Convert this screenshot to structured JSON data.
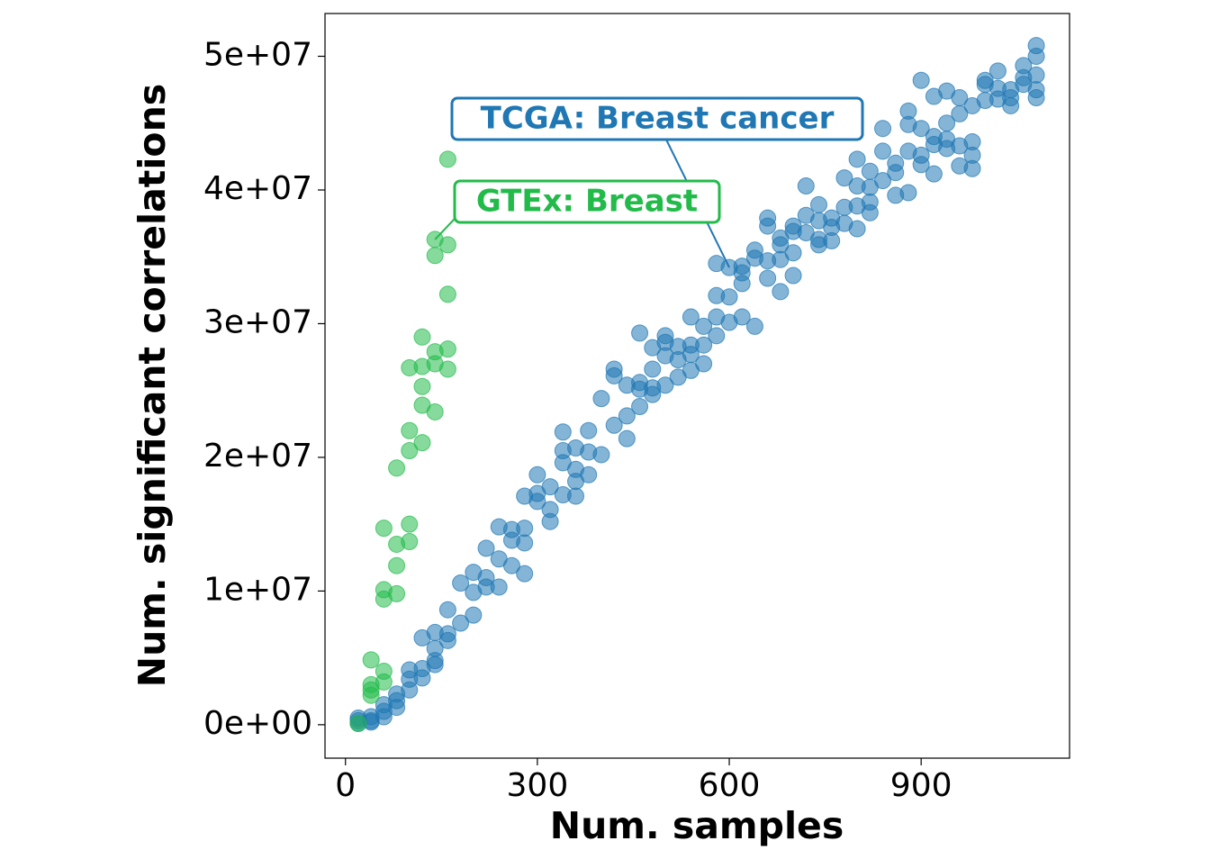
{
  "chart_data": {
    "type": "scatter",
    "xlabel": "Num. samples",
    "ylabel": "Num. significant correlations",
    "xlim": [
      -32,
      1132
    ],
    "ylim": [
      -2500000,
      53200000
    ],
    "xticks": [
      0,
      300,
      600,
      900
    ],
    "yticks": [
      {
        "value": 0,
        "label": "0e+00"
      },
      {
        "value": 10000000,
        "label": "1e+07"
      },
      {
        "value": 20000000,
        "label": "2e+07"
      },
      {
        "value": 30000000,
        "label": "3e+07"
      },
      {
        "value": 40000000,
        "label": "4e+07"
      },
      {
        "value": 50000000,
        "label": "5e+07"
      }
    ],
    "series": [
      {
        "color": "#1f77b4",
        "x": [
          20,
          20,
          20,
          40,
          40,
          40,
          60,
          60,
          60,
          80,
          80,
          80,
          100,
          100,
          100,
          120,
          120,
          120,
          140,
          140,
          140,
          140,
          160,
          160,
          160,
          180,
          180,
          200,
          200,
          200,
          220,
          220,
          220,
          240,
          240,
          240,
          260,
          260,
          260,
          280,
          280,
          280,
          280,
          300,
          300,
          300,
          320,
          320,
          320,
          340,
          340,
          340,
          340,
          360,
          360,
          360,
          360,
          380,
          380,
          380,
          400,
          400,
          420,
          420,
          420,
          440,
          440,
          440,
          460,
          460,
          460,
          460,
          480,
          480,
          480,
          480,
          500,
          500,
          500,
          500,
          520,
          520,
          520,
          540,
          540,
          540,
          540,
          560,
          560,
          560,
          580,
          580,
          580,
          580,
          600,
          600,
          600,
          620,
          620,
          620,
          620,
          640,
          640,
          640,
          660,
          660,
          660,
          660,
          680,
          680,
          680,
          680,
          700,
          700,
          700,
          700,
          720,
          720,
          720,
          740,
          740,
          740,
          740,
          760,
          760,
          760,
          780,
          780,
          780,
          800,
          800,
          800,
          800,
          820,
          820,
          820,
          820,
          840,
          840,
          840,
          860,
          860,
          860,
          880,
          880,
          880,
          880,
          900,
          900,
          900,
          900,
          920,
          920,
          920,
          920,
          940,
          940,
          940,
          940,
          960,
          960,
          960,
          960,
          980,
          980,
          980,
          980,
          1000,
          1000,
          1000,
          1020,
          1020,
          1020,
          1040,
          1040,
          1040,
          1060,
          1060,
          1060,
          1080,
          1080,
          1080,
          1080,
          1080
        ],
        "values": [
          100000,
          300000,
          500000,
          300000,
          600000,
          200000,
          600000,
          1000000,
          1500000,
          1300000,
          1800000,
          2300000,
          2600000,
          3400000,
          4100000,
          3500000,
          4200000,
          6500000,
          4500000,
          4800000,
          5700000,
          6900000,
          6300000,
          6800000,
          8600000,
          7600000,
          10600000,
          8200000,
          9900000,
          11400000,
          10300000,
          11000000,
          13200000,
          10300000,
          12400000,
          14800000,
          11900000,
          13800000,
          14600000,
          11300000,
          13600000,
          14700000,
          17100000,
          16700000,
          17300000,
          18700000,
          15200000,
          16100000,
          17800000,
          17200000,
          19600000,
          20500000,
          21900000,
          17100000,
          18200000,
          19100000,
          20700000,
          18700000,
          20400000,
          22000000,
          20200000,
          24400000,
          22400000,
          26100000,
          26600000,
          21400000,
          23100000,
          25400000,
          23800000,
          25100000,
          25600000,
          29300000,
          24700000,
          25200000,
          26600000,
          28200000,
          25400000,
          27600000,
          28600000,
          29100000,
          26000000,
          27300000,
          28300000,
          26500000,
          27700000,
          28400000,
          30500000,
          27000000,
          28400000,
          29800000,
          29100000,
          30500000,
          32100000,
          34500000,
          30100000,
          32000000,
          34200000,
          30500000,
          33000000,
          33800000,
          34300000,
          29800000,
          34900000,
          35500000,
          33400000,
          34700000,
          37300000,
          37900000,
          32400000,
          34800000,
          35900000,
          36400000,
          33600000,
          35300000,
          36900000,
          37300000,
          36800000,
          38100000,
          40300000,
          35900000,
          36300000,
          37700000,
          38900000,
          36200000,
          37200000,
          37900000,
          37500000,
          38700000,
          40900000,
          37100000,
          38800000,
          40300000,
          42300000,
          38300000,
          39100000,
          40200000,
          41400000,
          40700000,
          42900000,
          44600000,
          39600000,
          41300000,
          42000000,
          39800000,
          42900000,
          44900000,
          45900000,
          41900000,
          42600000,
          44600000,
          48200000,
          41200000,
          43400000,
          44000000,
          47000000,
          43100000,
          43800000,
          45000000,
          47400000,
          41800000,
          43300000,
          45700000,
          46900000,
          41600000,
          42600000,
          43600000,
          46300000,
          46700000,
          47900000,
          48200000,
          46800000,
          47600000,
          48900000,
          46300000,
          46900000,
          47500000,
          47900000,
          48400000,
          49300000,
          46900000,
          47500000,
          48600000,
          50000000,
          50800000
        ]
      },
      {
        "color": "#22bb4a",
        "x": [
          20,
          40,
          40,
          40,
          40,
          60,
          60,
          60,
          60,
          60,
          80,
          80,
          80,
          80,
          100,
          100,
          100,
          100,
          100,
          120,
          120,
          120,
          120,
          120,
          140,
          140,
          140,
          140,
          140,
          160,
          160,
          160,
          160,
          160
        ],
        "values": [
          100000,
          4850000,
          3000000,
          2200000,
          2600000,
          4000000,
          3200000,
          14700000,
          9400000,
          10100000,
          19200000,
          13500000,
          11900000,
          9800000,
          15000000,
          13700000,
          22000000,
          26700000,
          20500000,
          21100000,
          26800000,
          29000000,
          25300000,
          23900000,
          36300000,
          35100000,
          27900000,
          27000000,
          23400000,
          42300000,
          35900000,
          32200000,
          28100000,
          26600000
        ]
      }
    ],
    "annotations": [
      {
        "text": "TCGA: Breast cancer",
        "x": 600,
        "y": 34200000,
        "color": "#1f77b4"
      },
      {
        "text": "GTEx: Breast",
        "x": 140,
        "y": 36300000,
        "color": "#22bb4a"
      }
    ]
  }
}
